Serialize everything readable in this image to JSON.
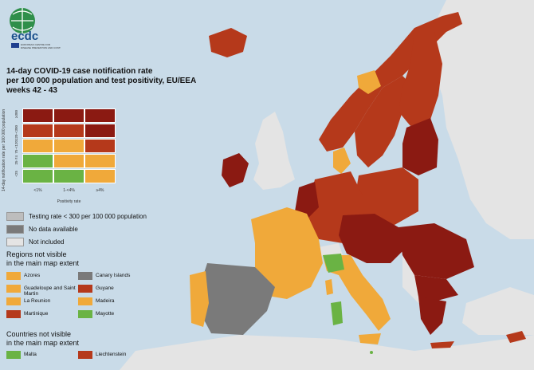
{
  "logo": {
    "brand": "ecdc",
    "subtext": "EUROPEAN CENTRE FOR DISEASE PREVENTION AND CONTROL"
  },
  "title": {
    "line1": "14-day COVID-19 case notification rate",
    "line2": "per 100 000 population and test positivity, EU/EEA",
    "line3": "weeks 42 - 43"
  },
  "matrix": {
    "y_axis_label": "14-day notification rate per 100 000 population",
    "x_axis_label": "Positivity rate",
    "x_ticks": [
      "<1%",
      "1-<4%",
      "≥4%"
    ],
    "y_ticks": [
      "≥300",
      "120-<300",
      "75-<120",
      "25-74",
      "<25"
    ],
    "rows": [
      [
        "#8b1a12",
        "#8b1a12",
        "#8b1a12"
      ],
      [
        "#b5391b",
        "#b5391b",
        "#8b1a12"
      ],
      [
        "#f0a93a",
        "#f0a93a",
        "#b5391b"
      ],
      [
        "#6ab344",
        "#f0a93a",
        "#f0a93a"
      ],
      [
        "#6ab344",
        "#6ab344",
        "#f0a93a"
      ]
    ]
  },
  "legend": [
    {
      "label": "Testing rate < 300 per 100 000 population",
      "color": "#bdbdbd"
    },
    {
      "label": "No data available",
      "color": "#7a7a7a"
    },
    {
      "label": "Not included",
      "color": "#e4e4e4"
    }
  ],
  "regions_heading": {
    "line1": "Regions not visible",
    "line2": "in the main map extent"
  },
  "regions": [
    {
      "label": "Azores",
      "color": "#f0a93a"
    },
    {
      "label": "Canary Islands",
      "color": "#7a7a7a"
    },
    {
      "label": "Guadeloupe and Saint Martin",
      "color": "#f0a93a"
    },
    {
      "label": "Guyane",
      "color": "#b5391b"
    },
    {
      "label": "La Reunion",
      "color": "#f0a93a"
    },
    {
      "label": "Madeira",
      "color": "#f0a93a"
    },
    {
      "label": "Martinique",
      "color": "#b5391b"
    },
    {
      "label": "Mayotte",
      "color": "#6ab344"
    }
  ],
  "countries_heading": {
    "line1": "Countries not visible",
    "line2": "in the main map extent"
  },
  "countries": [
    {
      "label": "Malta",
      "color": "#6ab344"
    },
    {
      "label": "Liechtenstein",
      "color": "#b5391b"
    }
  ],
  "colors": {
    "sea": "#c9dbe8",
    "not_included": "#e4e4e4",
    "dark_red": "#8b1a12",
    "red": "#b5391b",
    "orange": "#f0a93a",
    "green": "#6ab344",
    "grey": "#7a7a7a"
  }
}
